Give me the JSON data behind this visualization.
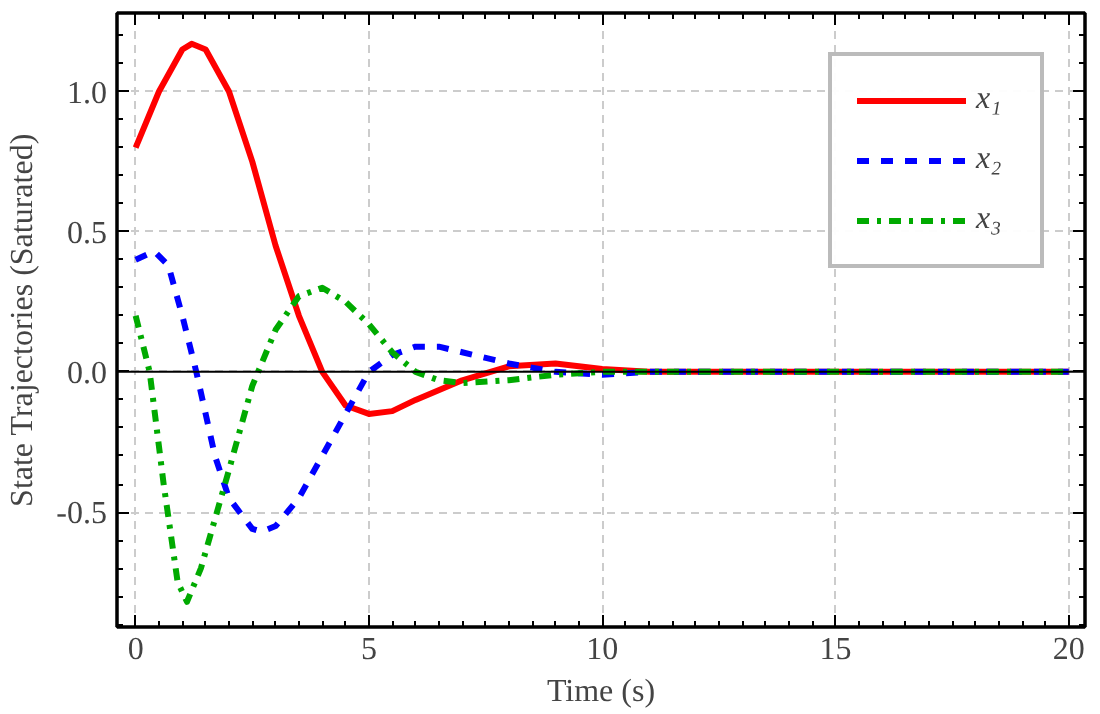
{
  "chart_data": {
    "type": "line",
    "xlabel": "Time (s)",
    "ylabel": "State Trajectories (Saturated)",
    "xlim": [
      -0.4,
      20.35
    ],
    "ylim": [
      -0.91,
      1.28
    ],
    "xticks": [
      0,
      5,
      10,
      15,
      20
    ],
    "yticks": [
      {
        "value": -0.5,
        "label": "-0.5"
      },
      {
        "value": 0,
        "label": "0.0"
      },
      {
        "value": 0.5,
        "label": "0.5"
      },
      {
        "value": 1,
        "label": "1.0"
      }
    ],
    "grid": true,
    "legend": "top right",
    "marker": "none",
    "ref_lines": [
      {
        "axis": "y",
        "value": 0,
        "color": "#000000",
        "line_style": "solid"
      }
    ],
    "series": [
      {
        "name": "x₁",
        "color": "#ff0000",
        "line_style": "solid",
        "x": [
          0,
          0.5,
          1.0,
          1.2,
          1.5,
          2,
          2.5,
          3,
          3.5,
          4,
          4.5,
          5,
          5.5,
          6,
          7,
          8,
          9,
          10,
          11,
          12,
          20
        ],
        "values": [
          0.8,
          1.0,
          1.15,
          1.17,
          1.15,
          1.0,
          0.75,
          0.45,
          0.2,
          0.0,
          -0.12,
          -0.15,
          -0.14,
          -0.1,
          -0.03,
          0.02,
          0.03,
          0.01,
          0.0,
          0.0,
          0.0
        ]
      },
      {
        "name": "x₂",
        "color": "#0000ff",
        "line_style": "dashed",
        "x": [
          0,
          0.4,
          0.7,
          1,
          1.3,
          1.7,
          2,
          2.5,
          2.7,
          3,
          3.5,
          4,
          4.5,
          5,
          5.5,
          6,
          6.5,
          7,
          8,
          9,
          10,
          11,
          20
        ],
        "values": [
          0.4,
          0.43,
          0.38,
          0.2,
          0.0,
          -0.3,
          -0.45,
          -0.56,
          -0.57,
          -0.55,
          -0.45,
          -0.3,
          -0.15,
          0.0,
          0.06,
          0.09,
          0.09,
          0.07,
          0.03,
          0.0,
          -0.01,
          0.0,
          0.0
        ]
      },
      {
        "name": "x₃",
        "color": "#00aa00",
        "line_style": "dashdot",
        "x": [
          0,
          0.3,
          0.6,
          0.9,
          1.1,
          1.4,
          2,
          2.5,
          3,
          3.5,
          4,
          4.5,
          5,
          5.5,
          6,
          6.5,
          7,
          8,
          9,
          10,
          20
        ],
        "values": [
          0.2,
          0.0,
          -0.4,
          -0.75,
          -0.82,
          -0.7,
          -0.35,
          -0.05,
          0.15,
          0.27,
          0.3,
          0.25,
          0.17,
          0.07,
          0.0,
          -0.03,
          -0.04,
          -0.03,
          -0.01,
          0.0,
          0.0
        ]
      }
    ]
  }
}
